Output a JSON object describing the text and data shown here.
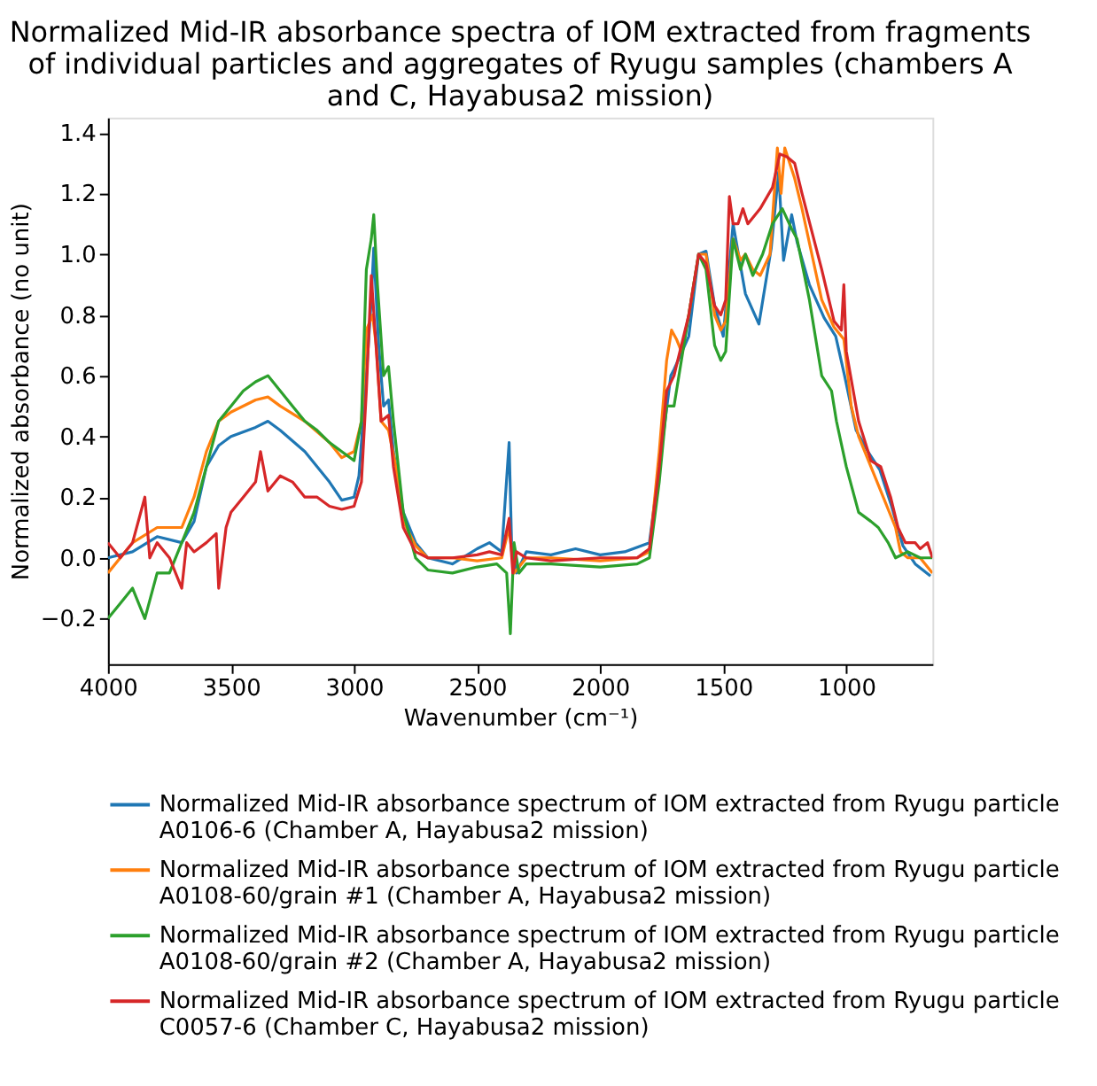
{
  "chart_data": {
    "type": "line",
    "title": "Normalized Mid-IR absorbance spectra of IOM extracted from fragments of individual particles and aggregates of Ryugu samples (chambers A and C, Hayabusa2 mission)",
    "xlabel": "Wavenumber (cm⁻¹)",
    "ylabel": "Normalized absorbance (no unit)",
    "xlim": [
      4000,
      650
    ],
    "xticks": [
      4000,
      3500,
      3000,
      2500,
      2000,
      1500,
      1000
    ],
    "ylim": [
      -0.35,
      1.45
    ],
    "yticks": [
      {
        "value": -0.2,
        "label": "−0.2"
      },
      {
        "value": 0.0,
        "label": "0.0"
      },
      {
        "value": 0.2,
        "label": "0.2"
      },
      {
        "value": 0.4,
        "label": "0.4"
      },
      {
        "value": 0.6,
        "label": "0.6"
      },
      {
        "value": 0.8,
        "label": "0.8"
      },
      {
        "value": 1.0,
        "label": "1.0"
      },
      {
        "value": 1.2,
        "label": "1.2"
      },
      {
        "value": 1.4,
        "label": "1.4"
      }
    ],
    "grid": false,
    "legend": "bottom",
    "line_style": "solid",
    "marker": "none",
    "series": [
      {
        "name": "Normalized Mid-IR absorbance spectrum of IOM extracted from Ryugu particle A0106-6 (Chamber A, Hayabusa2 mission)",
        "color": "#1f77b4",
        "x": [
          4000,
          3900,
          3800,
          3700,
          3650,
          3600,
          3550,
          3500,
          3400,
          3350,
          3300,
          3200,
          3100,
          3050,
          3000,
          2980,
          2950,
          2930,
          2920,
          2900,
          2880,
          2860,
          2840,
          2800,
          2750,
          2700,
          2600,
          2500,
          2450,
          2400,
          2370,
          2360,
          2340,
          2300,
          2200,
          2100,
          2000,
          1900,
          1800,
          1760,
          1713,
          1700,
          1640,
          1600,
          1570,
          1535,
          1500,
          1460,
          1410,
          1355,
          1305,
          1275,
          1255,
          1222,
          1200,
          1150,
          1090,
          1043,
          1007,
          960,
          912,
          864,
          816,
          770,
          720,
          658
        ],
        "values": [
          0.0,
          0.02,
          0.07,
          0.05,
          0.12,
          0.3,
          0.37,
          0.4,
          0.43,
          0.45,
          0.42,
          0.35,
          0.25,
          0.19,
          0.2,
          0.27,
          0.6,
          0.85,
          1.02,
          0.7,
          0.5,
          0.52,
          0.35,
          0.15,
          0.05,
          0.0,
          -0.02,
          0.03,
          0.05,
          0.02,
          0.38,
          0.05,
          -0.05,
          0.02,
          0.01,
          0.03,
          0.01,
          0.02,
          0.05,
          0.3,
          0.6,
          0.62,
          0.73,
          1.0,
          1.01,
          0.83,
          0.73,
          1.1,
          0.87,
          0.77,
          1.02,
          1.27,
          0.98,
          1.13,
          1.04,
          0.9,
          0.79,
          0.73,
          0.6,
          0.42,
          0.35,
          0.29,
          0.17,
          0.04,
          -0.02,
          -0.06
        ]
      },
      {
        "name": "Normalized Mid-IR absorbance spectrum of IOM extracted from Ryugu particle A0108-60/grain #1 (Chamber A, Hayabusa2 mission)",
        "color": "#ff7f0e",
        "x": [
          4000,
          3900,
          3800,
          3700,
          3650,
          3600,
          3550,
          3500,
          3400,
          3350,
          3300,
          3200,
          3100,
          3050,
          3000,
          2970,
          2950,
          2925,
          2910,
          2890,
          2860,
          2830,
          2800,
          2750,
          2700,
          2600,
          2500,
          2400,
          2370,
          2350,
          2300,
          2200,
          2000,
          1850,
          1800,
          1760,
          1730,
          1710,
          1690,
          1670,
          1640,
          1600,
          1570,
          1535,
          1510,
          1490,
          1460,
          1430,
          1410,
          1380,
          1350,
          1310,
          1280,
          1265,
          1250,
          1230,
          1210,
          1180,
          1100,
          1050,
          1010,
          980,
          950,
          900,
          850,
          800,
          780,
          750,
          700,
          650
        ],
        "values": [
          -0.05,
          0.05,
          0.1,
          0.1,
          0.2,
          0.35,
          0.45,
          0.48,
          0.52,
          0.53,
          0.5,
          0.45,
          0.38,
          0.33,
          0.35,
          0.45,
          0.75,
          0.8,
          0.7,
          0.45,
          0.42,
          0.3,
          0.12,
          0.04,
          0.0,
          0.0,
          -0.01,
          0.0,
          0.1,
          -0.05,
          0.0,
          0.0,
          -0.01,
          0.0,
          0.02,
          0.35,
          0.65,
          0.75,
          0.72,
          0.68,
          0.8,
          1.0,
          1.0,
          0.8,
          0.75,
          0.78,
          1.05,
          0.98,
          1.0,
          0.95,
          0.93,
          1.0,
          1.35,
          1.2,
          1.35,
          1.3,
          1.25,
          1.15,
          0.85,
          0.76,
          0.72,
          0.5,
          0.4,
          0.3,
          0.2,
          0.1,
          0.02,
          0.0,
          0.0,
          -0.05
        ]
      },
      {
        "name": "Normalized Mid-IR absorbance spectrum of IOM extracted from Ryugu particle A0108-60/grain #2 (Chamber A, Hayabusa2 mission)",
        "color": "#2ca02c",
        "x": [
          4000,
          3950,
          3900,
          3850,
          3800,
          3750,
          3700,
          3650,
          3600,
          3550,
          3500,
          3450,
          3400,
          3350,
          3300,
          3250,
          3200,
          3150,
          3100,
          3050,
          3000,
          2970,
          2950,
          2930,
          2920,
          2905,
          2880,
          2860,
          2840,
          2800,
          2750,
          2700,
          2600,
          2500,
          2420,
          2380,
          2365,
          2350,
          2330,
          2300,
          2200,
          2000,
          1850,
          1800,
          1760,
          1730,
          1700,
          1680,
          1640,
          1600,
          1570,
          1535,
          1510,
          1490,
          1460,
          1430,
          1410,
          1380,
          1340,
          1300,
          1260,
          1220,
          1200,
          1150,
          1100,
          1060,
          1040,
          1000,
          950,
          900,
          870,
          830,
          800,
          750,
          700,
          650
        ],
        "values": [
          -0.2,
          -0.15,
          -0.1,
          -0.2,
          -0.05,
          -0.05,
          0.05,
          0.15,
          0.3,
          0.45,
          0.5,
          0.55,
          0.58,
          0.6,
          0.55,
          0.5,
          0.45,
          0.42,
          0.38,
          0.35,
          0.32,
          0.45,
          0.95,
          1.05,
          1.13,
          0.9,
          0.6,
          0.63,
          0.45,
          0.15,
          0.0,
          -0.04,
          -0.05,
          -0.03,
          -0.02,
          -0.05,
          -0.25,
          0.05,
          -0.05,
          -0.02,
          -0.02,
          -0.03,
          -0.02,
          0.0,
          0.25,
          0.5,
          0.5,
          0.6,
          0.8,
          1.0,
          0.95,
          0.7,
          0.65,
          0.68,
          1.05,
          0.95,
          1.0,
          0.93,
          1.0,
          1.1,
          1.15,
          1.08,
          1.05,
          0.85,
          0.6,
          0.55,
          0.45,
          0.3,
          0.15,
          0.12,
          0.1,
          0.05,
          0.0,
          0.02,
          0.0,
          0.0
        ]
      },
      {
        "name": "Normalized Mid-IR absorbance spectrum of IOM extracted from Ryugu particle C0057-6 (Chamber C, Hayabusa2 mission)",
        "color": "#d62728",
        "x": [
          4000,
          3950,
          3900,
          3850,
          3830,
          3800,
          3750,
          3700,
          3680,
          3650,
          3600,
          3560,
          3550,
          3520,
          3500,
          3450,
          3400,
          3380,
          3350,
          3300,
          3250,
          3200,
          3150,
          3100,
          3050,
          3000,
          2970,
          2950,
          2930,
          2915,
          2890,
          2860,
          2840,
          2800,
          2750,
          2700,
          2600,
          2500,
          2450,
          2400,
          2370,
          2355,
          2340,
          2300,
          2200,
          2000,
          1850,
          1800,
          1760,
          1730,
          1700,
          1670,
          1640,
          1600,
          1570,
          1535,
          1510,
          1490,
          1475,
          1460,
          1440,
          1420,
          1400,
          1350,
          1300,
          1270,
          1240,
          1210,
          1180,
          1100,
          1050,
          1020,
          1010,
          1000,
          950,
          900,
          860,
          820,
          790,
          760,
          720,
          700,
          670,
          650
        ],
        "values": [
          0.05,
          0.0,
          0.05,
          0.2,
          0.0,
          0.05,
          0.0,
          -0.1,
          0.05,
          0.02,
          0.05,
          0.08,
          -0.1,
          0.1,
          0.15,
          0.2,
          0.25,
          0.35,
          0.22,
          0.27,
          0.25,
          0.2,
          0.2,
          0.17,
          0.16,
          0.17,
          0.25,
          0.55,
          0.93,
          0.75,
          0.45,
          0.47,
          0.3,
          0.1,
          0.02,
          0.0,
          0.0,
          0.01,
          0.02,
          0.01,
          0.13,
          -0.05,
          0.02,
          0.0,
          -0.01,
          0.0,
          0.0,
          0.03,
          0.3,
          0.55,
          0.6,
          0.7,
          0.8,
          1.0,
          0.97,
          0.83,
          0.8,
          0.85,
          1.19,
          1.1,
          1.1,
          1.15,
          1.1,
          1.15,
          1.22,
          1.33,
          1.32,
          1.3,
          1.2,
          0.95,
          0.78,
          0.75,
          0.9,
          0.68,
          0.45,
          0.32,
          0.3,
          0.2,
          0.1,
          0.05,
          0.05,
          0.03,
          0.05,
          0.0
        ]
      }
    ]
  }
}
